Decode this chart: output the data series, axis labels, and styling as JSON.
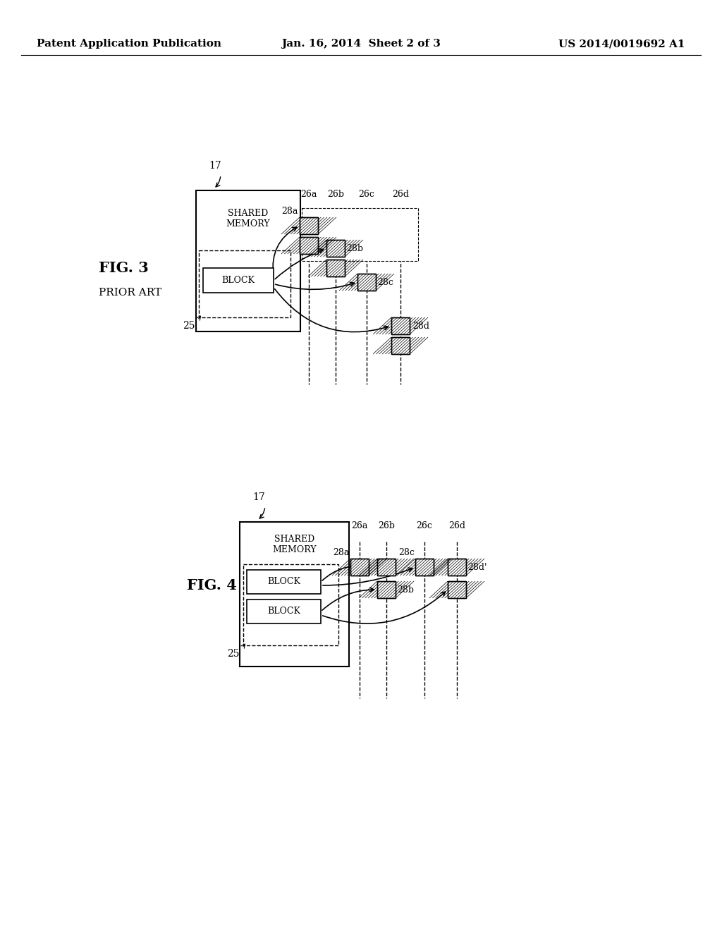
{
  "background_color": "#ffffff",
  "header": {
    "left": "Patent Application Publication",
    "center": "Jan. 16, 2014  Sheet 2 of 3",
    "right": "US 2014/0019692 A1",
    "fontsize": 11
  }
}
